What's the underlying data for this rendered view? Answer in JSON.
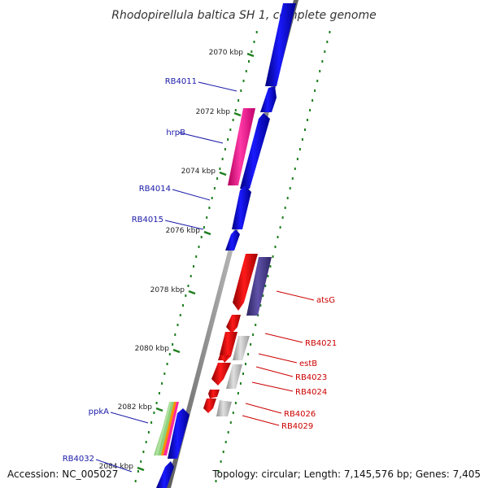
{
  "title": "Rhodopirellula baltica SH 1, complete genome",
  "accession_text": "Accession: NC_005027",
  "topology_text": "Topology: circular; Length: 7,145,576 bp; Genes: 7,405",
  "colors": {
    "forward_gene": "#0000e6",
    "reverse_gene": "#e60000",
    "forward_label": "#1a1aa8",
    "reverse_label": "#cc0000",
    "rna": "#ff2aa0",
    "other": "#4b3f8f",
    "hypothetical": "#bfbfbf",
    "backbone": "#8c8c8c",
    "ticks": "#1f7f1f"
  },
  "ticks": [
    "2070 kbp",
    "2072 kbp",
    "2074 kbp",
    "2076 kbp",
    "2078 kbp",
    "2080 kbp",
    "2082 kbp",
    "2084 kbp"
  ],
  "forward_labels": [
    "RB4011",
    "hrpB",
    "RB4014",
    "RB4015",
    "ppkA",
    "RB4032"
  ],
  "reverse_labels": [
    "atsG",
    "RB4021",
    "estB",
    "RB4023",
    "RB4024",
    "RB4026",
    "RB4029"
  ]
}
